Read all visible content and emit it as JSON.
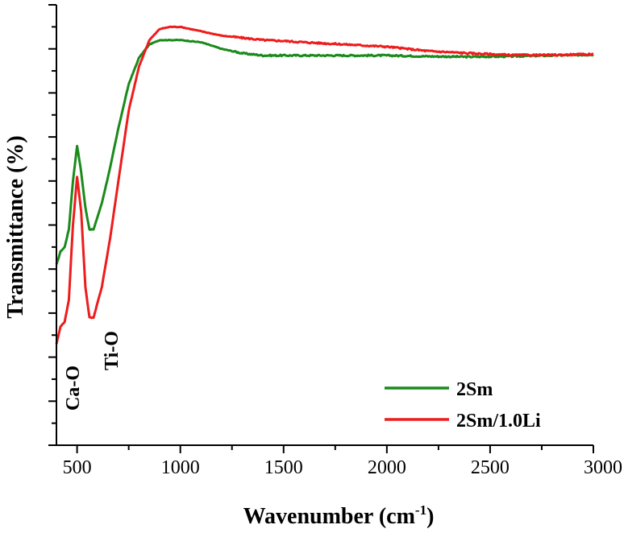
{
  "chart_data": {
    "type": "line",
    "title": "",
    "xlabel": "Wavenumber (cm",
    "xlabel_sup": "-1",
    "xlabel_close": ")",
    "ylabel": "Transmittance (%)",
    "xlim": [
      400,
      3000
    ],
    "ylim": [
      0,
      100
    ],
    "x_ticks": [
      500,
      1000,
      1500,
      2000,
      2500,
      3000
    ],
    "x_tick_labels": [
      "500",
      "1000",
      "1500",
      "2000",
      "2500",
      "3000"
    ],
    "y_ticks_unlabeled": true,
    "legend_position": "bottom-right",
    "annotations": [
      {
        "text": "Ca-O",
        "x": 490,
        "orientation": "vertical"
      },
      {
        "text": "Ti-O",
        "x": 630,
        "orientation": "vertical"
      }
    ],
    "series": [
      {
        "name": "2Sm",
        "color": "#1a8a1a",
        "x": [
          400,
          420,
          440,
          460,
          480,
          500,
          520,
          540,
          560,
          580,
          620,
          660,
          700,
          750,
          800,
          850,
          900,
          950,
          1000,
          1100,
          1200,
          1300,
          1400,
          1500,
          1600,
          1800,
          2000,
          2200,
          2400,
          2600,
          2800,
          3000
        ],
        "y": [
          41,
          44,
          45,
          49,
          60,
          68,
          62,
          54,
          49,
          49,
          55,
          63,
          72,
          82,
          88,
          91,
          92,
          92,
          92,
          91.5,
          90,
          89,
          88.5,
          88.5,
          88.5,
          88.5,
          88.5,
          88.3,
          88.2,
          88.3,
          88.5,
          88.7
        ]
      },
      {
        "name": "2Sm/1.0Li",
        "color": "#ee1c1c",
        "x": [
          400,
          420,
          440,
          460,
          480,
          500,
          520,
          540,
          560,
          580,
          620,
          660,
          700,
          750,
          800,
          850,
          900,
          950,
          1000,
          1100,
          1200,
          1300,
          1400,
          1500,
          1600,
          1800,
          2000,
          2200,
          2400,
          2600,
          2800,
          3000
        ],
        "y": [
          23,
          27,
          28,
          33,
          50,
          61,
          53,
          36,
          29,
          29,
          36,
          47,
          60,
          76,
          86,
          92,
          94.5,
          95,
          95,
          94,
          93,
          92.5,
          92,
          91.8,
          91.5,
          91,
          90.5,
          89.5,
          89,
          88.6,
          88.6,
          88.8
        ]
      }
    ]
  }
}
